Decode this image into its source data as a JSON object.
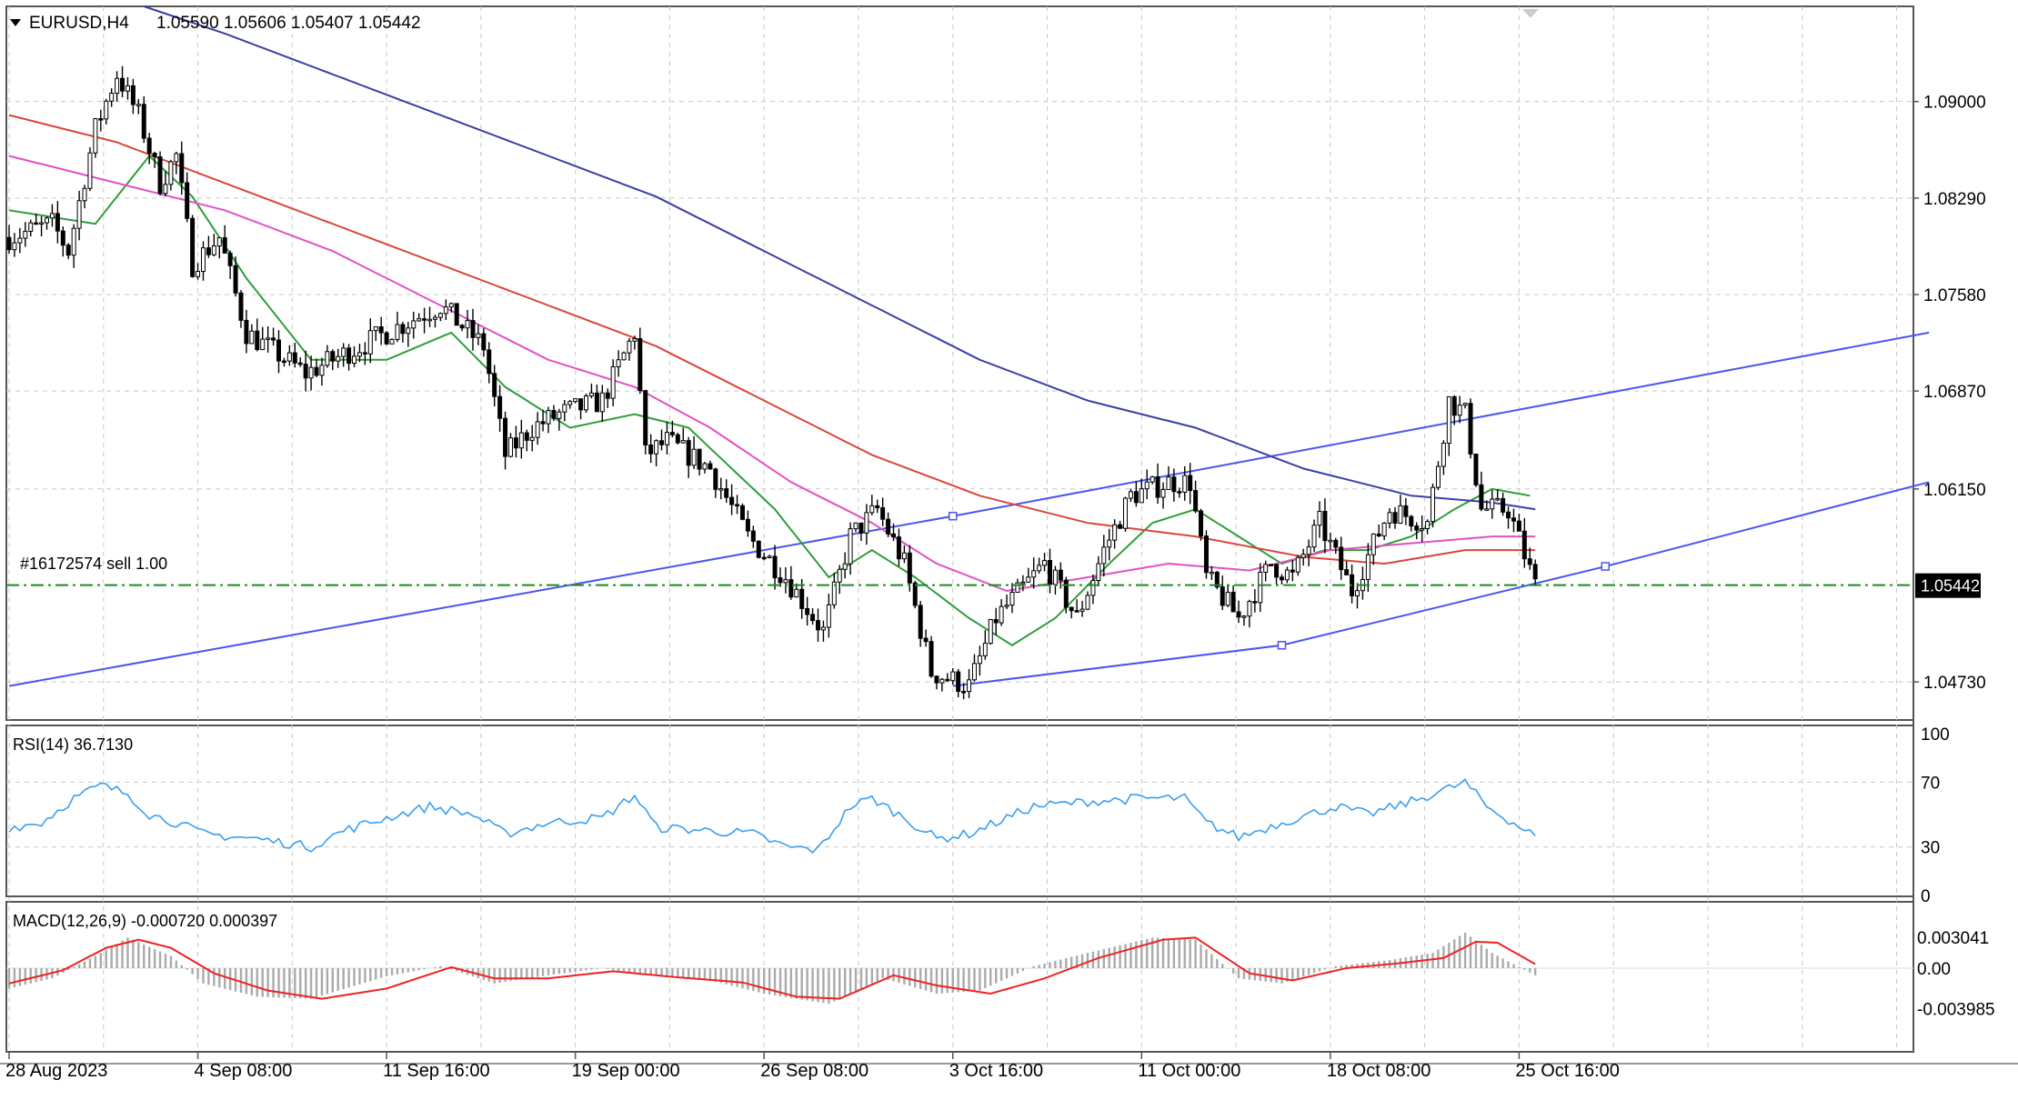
{
  "header": {
    "symbol_label": "EURUSD,H4",
    "ohlc_text": "1.05590 1.05606 1.05407 1.05442",
    "menu_arrow_icon": "triangle-down-icon"
  },
  "order_line": {
    "label": "#16172574 sell 1.00",
    "price": 1.05442
  },
  "current_price_label": "1.05442",
  "indicators": {
    "rsi": {
      "label": "RSI(14) 36.7130",
      "ticks": [
        "100",
        "70",
        "30",
        "0"
      ],
      "tick_values": [
        100,
        70,
        30,
        0
      ]
    },
    "macd": {
      "label": "MACD(12,26,9) -0.000720 0.000397",
      "ticks": [
        "0.003041",
        "0.00",
        "-0.003985"
      ],
      "tick_values": [
        0.003041,
        0.0,
        -0.003985
      ]
    }
  },
  "colors": {
    "background": "#ffffff",
    "grid": "#c8c8c8",
    "candle": "#000000",
    "ma_fast": "#2e9e3a",
    "ma_mid": "#e052c3",
    "ma_slow": "#d9463c",
    "ma_200": "#3b3fa6",
    "channel": "#4b55f0",
    "rsi_line": "#3a9ff0",
    "macd_hist": "#aaaaaa",
    "macd_signal": "#ee2222",
    "order_line": "#1d8a1d"
  },
  "chart_data": {
    "type": "candlestick",
    "symbol": "EURUSD",
    "timeframe": "H4",
    "x_labels": [
      "28 Aug 2023",
      "4 Sep 08:00",
      "11 Sep 16:00",
      "19 Sep 00:00",
      "26 Sep 08:00",
      "3 Oct 16:00",
      "11 Oct 00:00",
      "18 Oct 08:00",
      "25 Oct 16:00"
    ],
    "x_label_bar_index": [
      0,
      35,
      70,
      105,
      140,
      175,
      210,
      245,
      280
    ],
    "y_ticks": [
      "1.09000",
      "1.08290",
      "1.07580",
      "1.06870",
      "1.06150",
      "1.04730"
    ],
    "y_tick_values": [
      1.09,
      1.0829,
      1.0758,
      1.0687,
      1.0615,
      1.0473
    ],
    "ylim": [
      1.0445,
      1.097
    ],
    "bar_count": 284,
    "price_path_anchors": [
      [
        0,
        1.08
      ],
      [
        8,
        1.081
      ],
      [
        11,
        1.079
      ],
      [
        16,
        1.088
      ],
      [
        20,
        1.092
      ],
      [
        24,
        1.089
      ],
      [
        28,
        1.084
      ],
      [
        31,
        1.086
      ],
      [
        34,
        1.078
      ],
      [
        39,
        1.08
      ],
      [
        44,
        1.073
      ],
      [
        55,
        1.07
      ],
      [
        65,
        1.072
      ],
      [
        75,
        1.074
      ],
      [
        80,
        1.075
      ],
      [
        88,
        1.072
      ],
      [
        92,
        1.064
      ],
      [
        97,
        1.066
      ],
      [
        102,
        1.067
      ],
      [
        110,
        1.068
      ],
      [
        116,
        1.073
      ],
      [
        118,
        1.064
      ],
      [
        122,
        1.065
      ],
      [
        130,
        1.063
      ],
      [
        137,
        1.058
      ],
      [
        144,
        1.055
      ],
      [
        151,
        1.051
      ],
      [
        156,
        1.058
      ],
      [
        161,
        1.06
      ],
      [
        166,
        1.056
      ],
      [
        171,
        1.048
      ],
      [
        178,
        1.047
      ],
      [
        183,
        1.052
      ],
      [
        192,
        1.056
      ],
      [
        198,
        1.052
      ],
      [
        203,
        1.057
      ],
      [
        208,
        1.061
      ],
      [
        215,
        1.062
      ],
      [
        219,
        1.062
      ],
      [
        222,
        1.055
      ],
      [
        228,
        1.052
      ],
      [
        234,
        1.056
      ],
      [
        238,
        1.055
      ],
      [
        243,
        1.059
      ],
      [
        249,
        1.054
      ],
      [
        256,
        1.06
      ],
      [
        263,
        1.059
      ],
      [
        267,
        1.068
      ],
      [
        270,
        1.067
      ],
      [
        273,
        1.06
      ],
      [
        278,
        1.06
      ],
      [
        283,
        1.0544
      ]
    ],
    "moving_averages": [
      {
        "color": "#2e9e3a",
        "points": [
          [
            0,
            1.082
          ],
          [
            16,
            1.081
          ],
          [
            26,
            1.086
          ],
          [
            34,
            1.083
          ],
          [
            44,
            1.077
          ],
          [
            56,
            1.071
          ],
          [
            70,
            1.071
          ],
          [
            82,
            1.073
          ],
          [
            92,
            1.069
          ],
          [
            104,
            1.066
          ],
          [
            116,
            1.067
          ],
          [
            126,
            1.066
          ],
          [
            134,
            1.063
          ],
          [
            142,
            1.06
          ],
          [
            152,
            1.055
          ],
          [
            160,
            1.057
          ],
          [
            168,
            1.055
          ],
          [
            178,
            1.052
          ],
          [
            186,
            1.05
          ],
          [
            194,
            1.052
          ],
          [
            204,
            1.056
          ],
          [
            212,
            1.059
          ],
          [
            220,
            1.06
          ],
          [
            228,
            1.058
          ],
          [
            236,
            1.056
          ],
          [
            244,
            1.057
          ],
          [
            252,
            1.057
          ],
          [
            260,
            1.058
          ],
          [
            268,
            1.06
          ],
          [
            275,
            1.0615
          ],
          [
            282,
            1.061
          ]
        ]
      },
      {
        "color": "#e052c3",
        "points": [
          [
            0,
            1.086
          ],
          [
            20,
            1.084
          ],
          [
            40,
            1.082
          ],
          [
            60,
            1.079
          ],
          [
            80,
            1.075
          ],
          [
            100,
            1.071
          ],
          [
            116,
            1.069
          ],
          [
            130,
            1.066
          ],
          [
            145,
            1.062
          ],
          [
            160,
            1.059
          ],
          [
            172,
            1.056
          ],
          [
            185,
            1.054
          ],
          [
            200,
            1.055
          ],
          [
            215,
            1.056
          ],
          [
            230,
            1.0555
          ],
          [
            245,
            1.057
          ],
          [
            260,
            1.0575
          ],
          [
            275,
            1.058
          ],
          [
            283,
            1.058
          ]
        ]
      },
      {
        "color": "#d9463c",
        "points": [
          [
            0,
            1.089
          ],
          [
            20,
            1.087
          ],
          [
            40,
            1.084
          ],
          [
            60,
            1.081
          ],
          [
            80,
            1.078
          ],
          [
            100,
            1.075
          ],
          [
            120,
            1.072
          ],
          [
            140,
            1.068
          ],
          [
            160,
            1.064
          ],
          [
            180,
            1.061
          ],
          [
            200,
            1.059
          ],
          [
            220,
            1.058
          ],
          [
            240,
            1.0565
          ],
          [
            255,
            1.056
          ],
          [
            270,
            1.057
          ],
          [
            283,
            1.057
          ]
        ]
      },
      {
        "color": "#3b3fa6",
        "points": [
          [
            25,
            1.097
          ],
          [
            40,
            1.095
          ],
          [
            60,
            1.092
          ],
          [
            80,
            1.089
          ],
          [
            100,
            1.086
          ],
          [
            120,
            1.083
          ],
          [
            140,
            1.079
          ],
          [
            160,
            1.075
          ],
          [
            180,
            1.071
          ],
          [
            200,
            1.068
          ],
          [
            220,
            1.066
          ],
          [
            240,
            1.063
          ],
          [
            260,
            1.061
          ],
          [
            275,
            1.0605
          ],
          [
            283,
            1.06
          ]
        ]
      }
    ],
    "channel_lines": [
      {
        "points": [
          [
            0,
            1.047
          ],
          [
            175,
            1.0595
          ],
          [
            356,
            1.073
          ]
        ]
      },
      {
        "points": [
          [
            175,
            1.047
          ],
          [
            236,
            1.05
          ],
          [
            296,
            1.0558
          ],
          [
            356,
            1.062
          ]
        ]
      }
    ],
    "rsi_anchors": [
      [
        0,
        42
      ],
      [
        6,
        45
      ],
      [
        12,
        60
      ],
      [
        17,
        68
      ],
      [
        22,
        63
      ],
      [
        26,
        50
      ],
      [
        31,
        45
      ],
      [
        36,
        38
      ],
      [
        46,
        35
      ],
      [
        56,
        30
      ],
      [
        62,
        40
      ],
      [
        70,
        48
      ],
      [
        78,
        55
      ],
      [
        86,
        50
      ],
      [
        92,
        38
      ],
      [
        100,
        45
      ],
      [
        110,
        48
      ],
      [
        116,
        62
      ],
      [
        120,
        42
      ],
      [
        130,
        40
      ],
      [
        138,
        38
      ],
      [
        144,
        30
      ],
      [
        150,
        28
      ],
      [
        156,
        55
      ],
      [
        160,
        60
      ],
      [
        166,
        48
      ],
      [
        172,
        35
      ],
      [
        178,
        38
      ],
      [
        190,
        55
      ],
      [
        200,
        58
      ],
      [
        210,
        60
      ],
      [
        218,
        60
      ],
      [
        222,
        45
      ],
      [
        228,
        36
      ],
      [
        236,
        45
      ],
      [
        246,
        55
      ],
      [
        252,
        50
      ],
      [
        260,
        58
      ],
      [
        266,
        65
      ],
      [
        270,
        70
      ],
      [
        274,
        55
      ],
      [
        283,
        36.7
      ]
    ],
    "macd_hist_anchors": [
      [
        0,
        -0.002
      ],
      [
        8,
        -0.001
      ],
      [
        16,
        0.0012
      ],
      [
        22,
        0.003
      ],
      [
        30,
        0.0012
      ],
      [
        36,
        -0.0015
      ],
      [
        46,
        -0.0028
      ],
      [
        56,
        -0.003
      ],
      [
        70,
        -0.0008
      ],
      [
        80,
        0.0002
      ],
      [
        90,
        -0.0015
      ],
      [
        100,
        -0.0007
      ],
      [
        110,
        0.0
      ],
      [
        120,
        -0.0008
      ],
      [
        130,
        -0.0012
      ],
      [
        140,
        -0.0025
      ],
      [
        152,
        -0.0035
      ],
      [
        162,
        -0.001
      ],
      [
        172,
        -0.0025
      ],
      [
        180,
        -0.0022
      ],
      [
        190,
        0.0002
      ],
      [
        200,
        0.0015
      ],
      [
        212,
        0.003
      ],
      [
        220,
        0.0028
      ],
      [
        228,
        -0.001
      ],
      [
        236,
        -0.0015
      ],
      [
        246,
        0.0002
      ],
      [
        256,
        0.0008
      ],
      [
        264,
        0.0015
      ],
      [
        270,
        0.0035
      ],
      [
        275,
        0.0015
      ],
      [
        283,
        -0.0007
      ]
    ],
    "macd_signal_anchors": [
      [
        0,
        -0.0015
      ],
      [
        10,
        -0.0002
      ],
      [
        18,
        0.002
      ],
      [
        24,
        0.0028
      ],
      [
        30,
        0.002
      ],
      [
        38,
        -0.0005
      ],
      [
        48,
        -0.0022
      ],
      [
        58,
        -0.003
      ],
      [
        70,
        -0.002
      ],
      [
        82,
        0.0001
      ],
      [
        90,
        -0.001
      ],
      [
        100,
        -0.001
      ],
      [
        112,
        -0.0003
      ],
      [
        124,
        -0.0009
      ],
      [
        136,
        -0.0014
      ],
      [
        146,
        -0.0028
      ],
      [
        154,
        -0.003
      ],
      [
        164,
        -0.0007
      ],
      [
        172,
        -0.0017
      ],
      [
        182,
        -0.0025
      ],
      [
        192,
        -0.001
      ],
      [
        202,
        0.001
      ],
      [
        214,
        0.0028
      ],
      [
        220,
        0.003
      ],
      [
        230,
        -0.0005
      ],
      [
        238,
        -0.0012
      ],
      [
        248,
        0.0
      ],
      [
        258,
        0.0005
      ],
      [
        266,
        0.001
      ],
      [
        272,
        0.0026
      ],
      [
        276,
        0.0025
      ],
      [
        283,
        0.0004
      ]
    ]
  }
}
